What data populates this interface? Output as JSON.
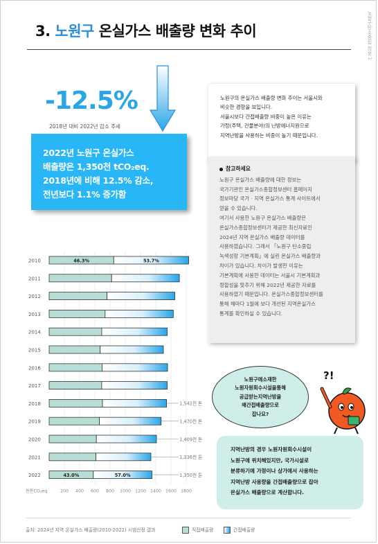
{
  "header": {
    "num": "3.",
    "highlight": "노원구",
    "rest": "온실가스 배출량 변화 추이",
    "side_label": "노원구탄소중립 정보 1"
  },
  "headline": {
    "value": "-12.5%",
    "caption": "2018년 대비 2022년 감소 추세"
  },
  "summary": {
    "lines": [
      "2022년 노원구 온실가스",
      "배출량은 1,350천 tCO₂eq.",
      "2018년에 비해 12.5% 감소,",
      "전년보다 1.1% 증가함"
    ]
  },
  "note": {
    "lines": [
      "노원구의 온실가스 배출량 변화 추이는 서울시와",
      "비슷한 경향을 보입니다.",
      "서울시보다 간접배출량 비중이 높은 이유는",
      "가정(주택, 건물분야)의 난방에너지원으로",
      "지역난방을 사용하는 비중이 높기 때문입니다."
    ]
  },
  "reference": {
    "title": "참고하세요",
    "lines": [
      "노원구 온실가스 배출량에 대한 정보는",
      "국가기관인 온실가스종합정보센터 홈페이지",
      "정보마당 국가 · 지역 온실가스 통계 사이트에서",
      "얻을 수 있습니다.",
      "여기서 사용한 노원구 온실가스 배출량은",
      "온실가스종합정보센터가 제공한 최신자료인",
      "2024년 지역 온실가스 배출량 데이터를",
      "사용하였습니다. 그래서 「노원구 탄소중립",
      "녹색성장 기본계획」에 실린 온실가스 배출량과",
      "차이가 있습니다. 차이가 발생한 이유는",
      "기본계획에 사용한 데이터는 서울시 기본계획과",
      "정합성을 맞추기 위해 2022년 제공한 자료를",
      "사용하였기 때문입니다. 온실가스종합정보센터를",
      "통해 해마다 1월에 보다 개선된 지역온실가스",
      "통계를 확인하실 수 있습니다."
    ]
  },
  "question": {
    "lines": [
      "노원구에소재한",
      "노원자원회수시설을통해",
      "공급받는지역난방을",
      "왜간접배출량으로",
      "잡나요?"
    ]
  },
  "answer": {
    "lines": [
      "지역난방의 경우 노원자원회수시설이",
      "노원구에 위치해있지만, 국가시설로",
      "분류하기에 가정이나 상가에서 사용하는",
      "지역난방 사용량을 간접배출량으로 잡아",
      "온실가스 배출량으로 계산합니다."
    ]
  },
  "footer": {
    "source": "출처: 2024년 지역 온실가스 배출량(2010-2022) 시범산정 결과",
    "legend_direct": "직접배출량",
    "legend_indirect": "간접배출량"
  },
  "colors": {
    "accent": "#29b6f6",
    "title_highlight": "#2a8fd8",
    "direct": "#b7ded6",
    "indirect_start": "#ffffff",
    "indirect_end": "#29a6e8",
    "bubble": "#cfeee9",
    "mascot": "#f15a24"
  },
  "chart_data": {
    "type": "bar",
    "orientation": "horizontal",
    "stacked": true,
    "xlabel": "천톤CO₂eq",
    "xlim": [
      0,
      1800
    ],
    "xticks": [
      200,
      400,
      600,
      800,
      1000,
      1200,
      1400,
      1600,
      1800
    ],
    "categories": [
      "2010",
      "2011",
      "2012",
      "2013",
      "2014",
      "2015",
      "2016",
      "2017",
      "2018",
      "2019",
      "2020",
      "2021",
      "2022"
    ],
    "series": [
      {
        "name": "직접배출량",
        "values": [
          848,
          820,
          760,
          735,
          690,
          670,
          695,
          690,
          700,
          660,
          620,
          615,
          580
        ]
      },
      {
        "name": "간접배출량",
        "values": [
          984,
          890,
          890,
          895,
          860,
          830,
          860,
          860,
          842,
          810,
          789,
          721,
          770
        ]
      }
    ],
    "total_labels": {
      "2018": "1,542천 톤",
      "2019": "1,470천 톤",
      "2020": "1,409천 톤",
      "2021": "1,336천 톤",
      "2022": "1,350천 톤"
    },
    "share_labels": {
      "2010": [
        "46.3%",
        "53.7%"
      ],
      "2022": [
        "43.0%",
        "57.0%"
      ]
    }
  }
}
